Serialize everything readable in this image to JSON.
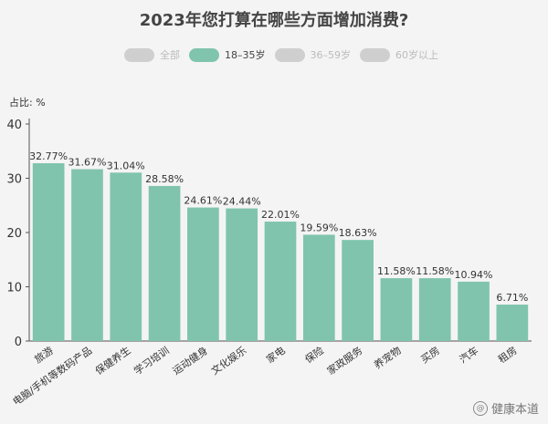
{
  "header": {
    "title": "2023年您打算在哪些方面增加消费?"
  },
  "legend": {
    "items": [
      {
        "label": "全部",
        "active": false,
        "color": "#cfcfcf"
      },
      {
        "label": "18–35岁",
        "active": true,
        "color": "#80c4ad"
      },
      {
        "label": "36–59岁",
        "active": false,
        "color": "#cfcfcf"
      },
      {
        "label": "60岁以上",
        "active": false,
        "color": "#cfcfcf"
      }
    ]
  },
  "watermark": {
    "text": "健康本道",
    "icon": "at-icon"
  },
  "chart_data": {
    "type": "bar",
    "title": "2023年您打算在哪些方面增加消费?",
    "ylabel": "占比: %",
    "xlabel": "",
    "ylim": [
      0,
      40
    ],
    "yticks": [
      0,
      10,
      20,
      30,
      40
    ],
    "grid": false,
    "legend_position": "top",
    "bar_color": "#80c4ad",
    "categories": [
      "旅游",
      "电脑/手机等数码产品",
      "保健养生",
      "学习培训",
      "运动健身",
      "文化娱乐",
      "家电",
      "保险",
      "家政服务",
      "养宠物",
      "买房",
      "汽车",
      "租房"
    ],
    "values": [
      32.77,
      31.67,
      31.04,
      28.58,
      24.61,
      24.44,
      22.01,
      19.59,
      18.63,
      11.58,
      11.58,
      10.94,
      6.71
    ],
    "data_labels": [
      "32.77%",
      "31.67%",
      "31.04%",
      "28.58%",
      "24.61%",
      "24.44%",
      "22.01%",
      "19.59%",
      "18.63%",
      "11.58%",
      "11.58%",
      "10.94%",
      "6.71%"
    ]
  }
}
